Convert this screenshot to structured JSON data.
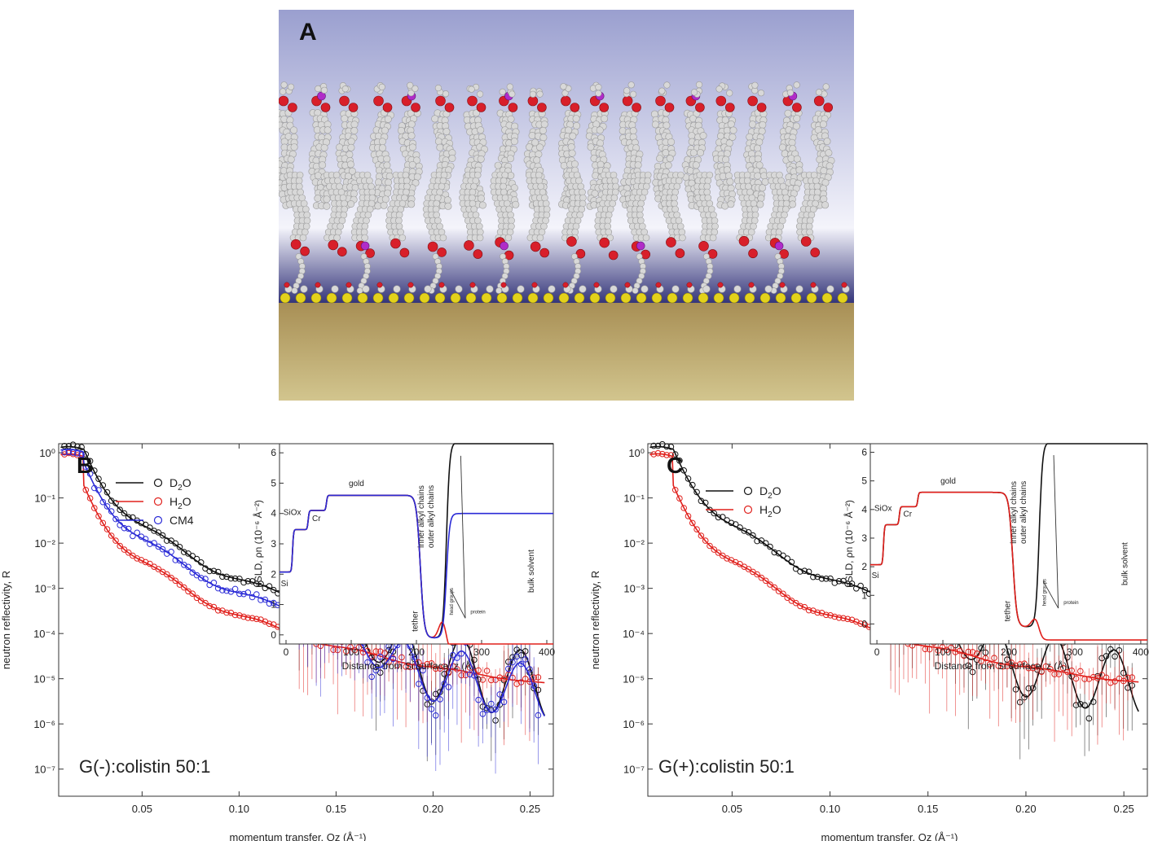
{
  "panel_a": {
    "label": "A",
    "colors": {
      "solvent_top": "#9a9fcf",
      "solvent_light": "#f4f4fb",
      "lower_blue": "#34357a",
      "gold_top": "#a88f55",
      "gold_bottom": "#d2c58e",
      "atom_carbon": "#d8d8d8",
      "atom_oxygen": "#d81f2a",
      "atom_phosphorus": "#b02cc8",
      "atom_sulfur": "#e3d21b"
    }
  },
  "chart_data": [
    {
      "id": "B",
      "type": "scatter",
      "panel_label": "B",
      "annotation": "G(-):colistin 50:1",
      "xlabel": "momentum transfer,  Qz (Å⁻¹)",
      "ylabel": "neutron reflectivity,  R",
      "xlim": [
        0.007,
        0.262
      ],
      "ylim_log10": [
        -7.6,
        0.2
      ],
      "log_y": true,
      "xticks": [
        "0.05",
        "0.10",
        "0.15",
        "0.20",
        "0.25"
      ],
      "xtick_values": [
        0.05,
        0.1,
        0.15,
        0.2,
        0.25
      ],
      "yticks": [
        "10⁰",
        "10⁻¹",
        "10⁻²",
        "10⁻³",
        "10⁻⁴",
        "10⁻⁵",
        "10⁻⁶",
        "10⁻⁷"
      ],
      "ytick_values": [
        0,
        -1,
        -2,
        -3,
        -4,
        -5,
        -6,
        -7
      ],
      "legend": [
        {
          "line": "D",
          "sub": "2",
          "tail": "O",
          "color": "#111111"
        },
        {
          "line": "H",
          "sub": "2",
          "tail": "O",
          "color": "#e0201c"
        },
        {
          "line": "CM4",
          "sub": "",
          "tail": "",
          "color": "#2a2ad6"
        }
      ],
      "series": [
        {
          "name": "D₂O",
          "color": "#111111",
          "base": 0,
          "dip_start": 0.14,
          "dip_depth": 1.5,
          "floor": -6.0,
          "noise": 0.25
        },
        {
          "name": "H₂O",
          "color": "#e0201c",
          "base": -0.8,
          "dip_start": 0.3,
          "dip_depth": 0.2,
          "floor": -5.65,
          "noise": 0.12
        },
        {
          "name": "CM4",
          "color": "#2a2ad6",
          "base": -0.3,
          "dip_start": 0.14,
          "dip_depth": 1.2,
          "floor": -6.1,
          "noise": 0.35
        }
      ],
      "inset": {
        "xlabel": "Distance from Si surface,  z (Å)",
        "ylabel": "nSLD,  ρn  (10⁻⁶ Å⁻²)",
        "xlim": [
          -10,
          410
        ],
        "ylim": [
          -0.3,
          6.3
        ],
        "xticks": [
          "0",
          "100",
          "200",
          "300",
          "400"
        ],
        "xtick_values": [
          0,
          100,
          200,
          300,
          400
        ],
        "yticks": [
          "0",
          "1",
          "2",
          "3",
          "4",
          "5",
          "6"
        ],
        "ytick_values": [
          0,
          1,
          2,
          3,
          4,
          5,
          6
        ],
        "labels": {
          "si": "Si",
          "siox": "SiOx",
          "cr": "Cr",
          "gold": "gold",
          "tether": "tether",
          "inner": "inner alkyl chains",
          "outer": "outer alkyl chains",
          "head": "head groups",
          "protein": "protein",
          "bulk": "bulk solvent"
        },
        "profiles": [
          {
            "name": "D₂O",
            "color": "#111111",
            "bulk": 6.35,
            "protein_peak": 0.6
          },
          {
            "name": "H₂O",
            "color": "#e0201c",
            "bulk": -0.56,
            "protein_peak": 0.55
          },
          {
            "name": "CM4",
            "color": "#2a2ad6",
            "bulk": 4.0,
            "protein_peak": 0.6
          }
        ]
      }
    },
    {
      "id": "C",
      "type": "scatter",
      "panel_label": "C",
      "annotation": "G(+):colistin 50:1",
      "xlabel": "momentum transfer,  Qz (Å⁻¹)",
      "ylabel": "neutron reflectivity,  R",
      "xlim": [
        0.007,
        0.262
      ],
      "ylim_log10": [
        -7.6,
        0.2
      ],
      "log_y": true,
      "xticks": [
        "0.05",
        "0.10",
        "0.15",
        "0.20",
        "0.25"
      ],
      "xtick_values": [
        0.05,
        0.1,
        0.15,
        0.2,
        0.25
      ],
      "yticks": [
        "10⁰",
        "10⁻¹",
        "10⁻²",
        "10⁻³",
        "10⁻⁴",
        "10⁻⁵",
        "10⁻⁶",
        "10⁻⁷"
      ],
      "ytick_values": [
        0,
        -1,
        -2,
        -3,
        -4,
        -5,
        -6,
        -7
      ],
      "legend": [
        {
          "line": "D",
          "sub": "2",
          "tail": "O",
          "color": "#111111"
        },
        {
          "line": "H",
          "sub": "2",
          "tail": "O",
          "color": "#e0201c"
        }
      ],
      "series": [
        {
          "name": "D₂O",
          "color": "#111111",
          "base": 0,
          "dip_start": 0.14,
          "dip_depth": 1.4,
          "floor": -6.2,
          "noise": 0.3
        },
        {
          "name": "H₂O",
          "color": "#e0201c",
          "base": -0.8,
          "dip_start": 0.3,
          "dip_depth": 0.2,
          "floor": -5.6,
          "noise": 0.1
        }
      ],
      "inset": {
        "xlabel": "Distance from Si surface,  z (Å)",
        "ylabel": "nSLD,  ρn  (10⁻⁶ Å⁻²)",
        "xlim": [
          -10,
          410
        ],
        "ylim": [
          -0.7,
          6.3
        ],
        "xticks": [
          "0",
          "100",
          "200",
          "300",
          "400"
        ],
        "xtick_values": [
          0,
          100,
          200,
          300,
          400
        ],
        "yticks": [
          "0",
          "1",
          "2",
          "3",
          "4",
          "5",
          "6"
        ],
        "ytick_values": [
          0,
          1,
          2,
          3,
          4,
          5,
          6
        ],
        "labels": {
          "si": "Si",
          "siox": "SiOx",
          "cr": "Cr",
          "gold": "gold",
          "tether": "tether",
          "inner": "inner alkyl chains",
          "outer": "outer alkyl chains",
          "head": "head groups",
          "protein": "protein",
          "bulk": "bulk solvent"
        },
        "profiles": [
          {
            "name": "D₂O",
            "color": "#111111",
            "bulk": 6.35,
            "protein_peak": 0.4
          },
          {
            "name": "H₂O",
            "color": "#e0201c",
            "bulk": -0.56,
            "protein_peak": 0.3
          }
        ]
      }
    }
  ]
}
